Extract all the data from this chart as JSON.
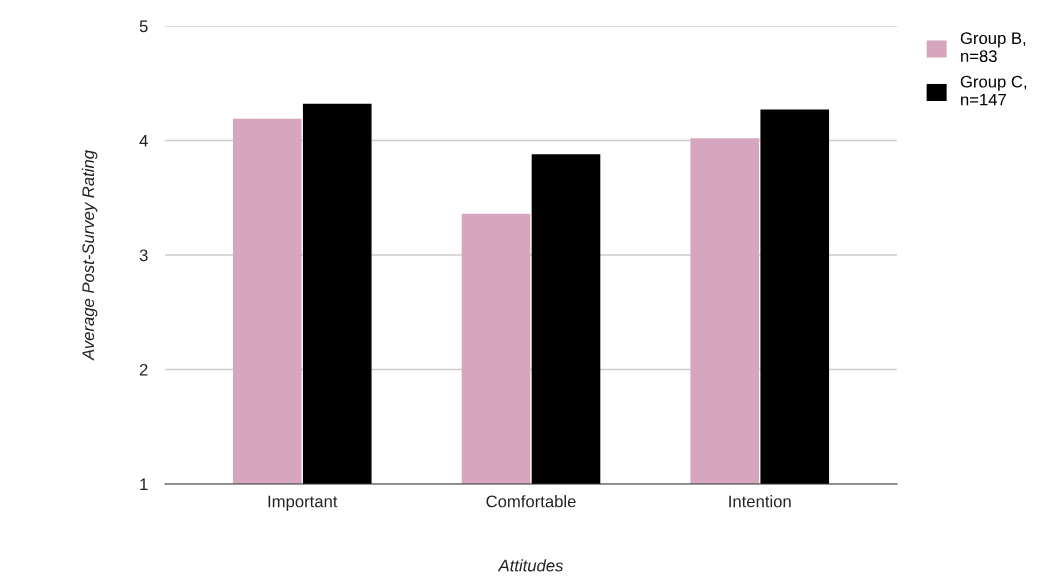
{
  "chart_data": {
    "type": "bar",
    "xlabel": "Attitudes",
    "ylabel": "Average Post-Survey Rating",
    "categories": [
      "Important",
      "Comfortable",
      "Intention"
    ],
    "series": [
      {
        "name": "Group B,\nn=83",
        "color": "#d5a6bd",
        "values": [
          4.19,
          3.36,
          4.02
        ]
      },
      {
        "name": "Group C,\nn=147",
        "color": "#000000",
        "values": [
          4.32,
          3.88,
          4.27
        ]
      }
    ],
    "ylim": [
      1,
      5
    ],
    "yticks": [
      1,
      2,
      3,
      4,
      5
    ],
    "grid": "y",
    "legend": "top right"
  }
}
